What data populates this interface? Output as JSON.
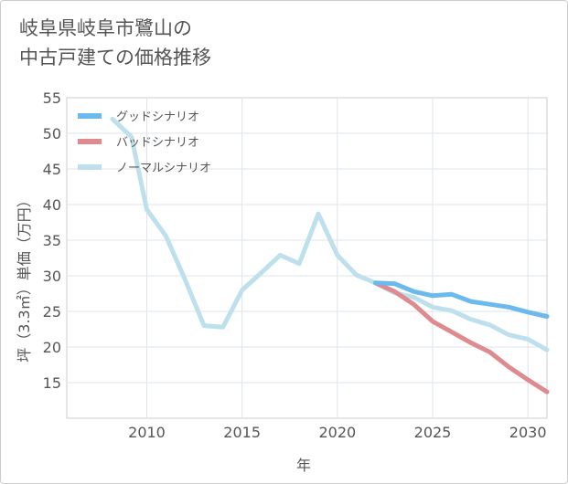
{
  "title": "岐阜県岐阜市鷺山の\n中古戸建ての価格推移",
  "chart_data": {
    "type": "line",
    "title": "岐阜県岐阜市鷺山の\n中古戸建ての価格推移",
    "xlabel": "年",
    "ylabel": "坪（3.3㎡）単価（万円）",
    "xlim": [
      2005.8,
      2031
    ],
    "ylim": [
      10,
      55
    ],
    "x_ticks": [
      2010,
      2015,
      2020,
      2025,
      2030
    ],
    "y_ticks": [
      15,
      20,
      25,
      30,
      35,
      40,
      45,
      50,
      55
    ],
    "grid": true,
    "legend_position": "top-left",
    "series": [
      {
        "name": "グッドシナリオ",
        "color": "#6cb9ee",
        "x": [
          2022,
          2023,
          2024,
          2025,
          2026,
          2027,
          2028,
          2029,
          2030,
          2031
        ],
        "y": [
          29.0,
          28.9,
          27.8,
          27.2,
          27.4,
          26.4,
          26.0,
          25.6,
          24.9,
          24.3
        ]
      },
      {
        "name": "バッドシナリオ",
        "color": "#de8a8f",
        "x": [
          2022,
          2023,
          2024,
          2025,
          2026,
          2027,
          2028,
          2029,
          2030,
          2031
        ],
        "y": [
          29.0,
          27.8,
          26.0,
          23.6,
          22.1,
          20.6,
          19.3,
          17.2,
          15.4,
          13.7
        ]
      },
      {
        "name": "ノーマルシナリオ",
        "color": "#bde0ec",
        "x": [
          2008.2,
          2009.2,
          2010,
          2011,
          2012,
          2013,
          2014,
          2015,
          2016,
          2017,
          2018,
          2019,
          2020,
          2021,
          2022,
          2023,
          2024,
          2025,
          2026,
          2027,
          2028,
          2029,
          2030,
          2031
        ],
        "y": [
          52.0,
          49.5,
          39.3,
          35.6,
          29.5,
          23.0,
          22.8,
          28.0,
          30.4,
          32.9,
          31.7,
          38.7,
          32.9,
          30.1,
          29.0,
          27.6,
          27.0,
          25.6,
          25.1,
          23.9,
          23.1,
          21.7,
          21.1,
          19.6
        ]
      }
    ]
  }
}
